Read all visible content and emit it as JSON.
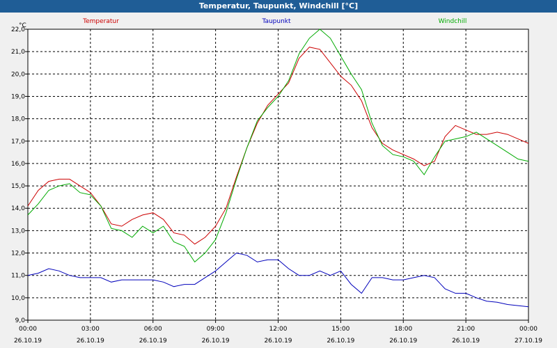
{
  "window": {
    "title": "Temperatur, Taupunkt, Windchill [°C]"
  },
  "chart_data": {
    "type": "line",
    "title": "Temperatur, Taupunkt, Windchill [°C]",
    "ylabel": "°C",
    "ylim": [
      9.0,
      22.0
    ],
    "xlim": [
      0,
      24
    ],
    "grid": true,
    "legend": "top",
    "x_ticks": [
      {
        "hour": 0,
        "time": "00:00",
        "date": "26.10.19"
      },
      {
        "hour": 3,
        "time": "03:00",
        "date": "26.10.19"
      },
      {
        "hour": 6,
        "time": "06:00",
        "date": "26.10.19"
      },
      {
        "hour": 9,
        "time": "09:00",
        "date": "26.10.19"
      },
      {
        "hour": 12,
        "time": "12:00",
        "date": "26.10.19"
      },
      {
        "hour": 15,
        "time": "15:00",
        "date": "26.10.19"
      },
      {
        "hour": 18,
        "time": "18:00",
        "date": "26.10.19"
      },
      {
        "hour": 21,
        "time": "21:00",
        "date": "26.10.19"
      },
      {
        "hour": 24,
        "time": "00:00",
        "date": "27.10.19"
      }
    ],
    "y_ticks": [
      "9,0",
      "10,0",
      "11,0",
      "12,0",
      "13,0",
      "14,0",
      "15,0",
      "16,0",
      "17,0",
      "18,0",
      "19,0",
      "20,0",
      "21,0",
      "22,0"
    ],
    "x": [
      0,
      0.5,
      1,
      1.5,
      2,
      2.5,
      3,
      3.5,
      4,
      4.5,
      5,
      5.5,
      6,
      6.5,
      7,
      7.5,
      8,
      8.5,
      9,
      9.5,
      10,
      10.5,
      11,
      11.5,
      12,
      12.5,
      13,
      13.5,
      14,
      14.5,
      15,
      15.5,
      16,
      16.5,
      17,
      17.5,
      18,
      18.5,
      19,
      19.5,
      20,
      20.5,
      21,
      21.5,
      22,
      22.5,
      23,
      23.5,
      24
    ],
    "series": [
      {
        "name": "Temperatur",
        "color": "#cc0000",
        "values": [
          14.1,
          14.8,
          15.2,
          15.3,
          15.3,
          15.0,
          14.7,
          14.1,
          13.3,
          13.2,
          13.5,
          13.7,
          13.8,
          13.5,
          12.9,
          12.8,
          12.4,
          12.7,
          13.2,
          14.0,
          15.4,
          16.7,
          17.8,
          18.6,
          19.1,
          19.6,
          20.7,
          21.2,
          21.1,
          20.5,
          19.9,
          19.5,
          18.8,
          17.6,
          16.9,
          16.6,
          16.4,
          16.2,
          15.9,
          16.1,
          17.2,
          17.7,
          17.5,
          17.3,
          17.3,
          17.4,
          17.3,
          17.1,
          16.9
        ]
      },
      {
        "name": "Taupunkt",
        "color": "#0000bb",
        "values": [
          11.0,
          11.1,
          11.3,
          11.2,
          11.0,
          10.9,
          10.9,
          10.9,
          10.7,
          10.8,
          10.8,
          10.8,
          10.8,
          10.7,
          10.5,
          10.6,
          10.6,
          10.9,
          11.2,
          11.6,
          12.0,
          11.9,
          11.6,
          11.7,
          11.7,
          11.3,
          11.0,
          11.0,
          11.2,
          11.0,
          11.2,
          10.6,
          10.2,
          10.9,
          10.9,
          10.8,
          10.8,
          10.9,
          11.0,
          10.9,
          10.4,
          10.2,
          10.2,
          10.0,
          9.85,
          9.8,
          9.7,
          9.65,
          9.6
        ]
      },
      {
        "name": "Windchill",
        "color": "#00aa00",
        "values": [
          13.7,
          14.2,
          14.8,
          15.0,
          15.1,
          14.7,
          14.6,
          14.1,
          13.1,
          13.0,
          12.7,
          13.2,
          12.9,
          13.2,
          12.5,
          12.3,
          11.6,
          12.0,
          12.6,
          13.8,
          15.3,
          16.7,
          17.9,
          18.5,
          19.0,
          19.7,
          20.9,
          21.6,
          22.0,
          21.6,
          20.8,
          20.0,
          19.3,
          17.8,
          16.8,
          16.4,
          16.3,
          16.1,
          15.5,
          16.3,
          17.0,
          17.1,
          17.2,
          17.4,
          17.1,
          16.8,
          16.5,
          16.2,
          16.1
        ]
      }
    ]
  }
}
